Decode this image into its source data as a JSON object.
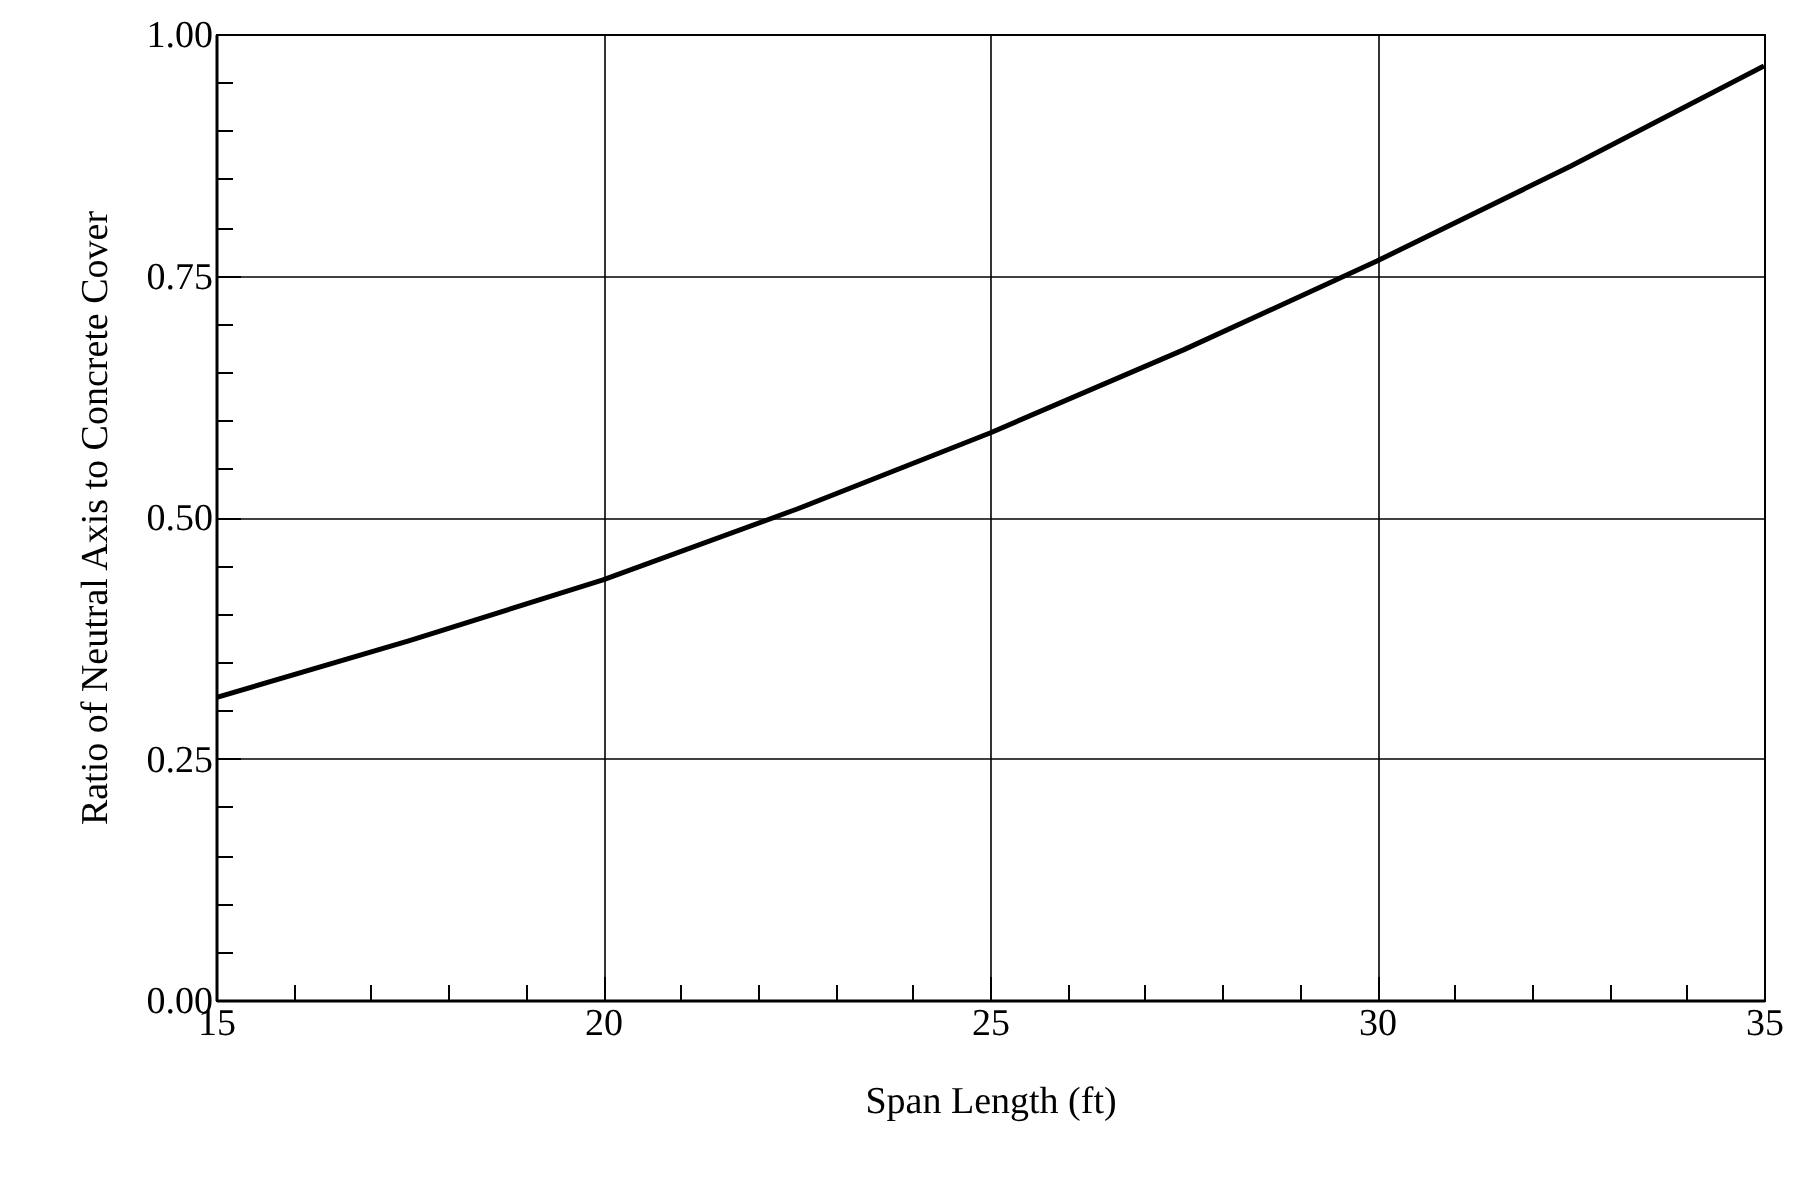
{
  "chart_data": {
    "type": "line",
    "xlabel": "Span Length (ft)",
    "ylabel": "Ratio of Neutral Axis to Concrete Cover",
    "x": [
      15,
      17.5,
      20,
      22.5,
      25,
      27.5,
      30,
      32.5,
      35
    ],
    "series": [
      {
        "color": "#000000",
        "values": [
          0.313,
          0.372,
          0.435,
          0.508,
          0.587,
          0.673,
          0.765,
          0.863,
          0.967
        ]
      }
    ],
    "xlim": [
      15,
      35
    ],
    "ylim": [
      0,
      1
    ],
    "xticks": [
      15,
      {
        "value": 16,
        "label": null
      },
      {
        "value": 17,
        "label": null
      },
      {
        "value": 18,
        "label": null
      },
      {
        "value": 19,
        "label": null
      },
      20,
      {
        "value": 21,
        "label": null
      },
      {
        "value": 22,
        "label": null
      },
      {
        "value": 23,
        "label": null
      },
      {
        "value": 24,
        "label": null
      },
      25,
      {
        "value": 26,
        "label": null
      },
      {
        "value": 27,
        "label": null
      },
      {
        "value": 28,
        "label": null
      },
      {
        "value": 29,
        "label": null
      },
      30,
      {
        "value": 31,
        "label": null
      },
      {
        "value": 32,
        "label": null
      },
      {
        "value": 33,
        "label": null
      },
      {
        "value": 34,
        "label": null
      },
      35
    ],
    "yticks": [
      {
        "value": 0,
        "label": "0.00"
      },
      {
        "value": 0.05,
        "label": null
      },
      {
        "value": 0.1,
        "label": null
      },
      {
        "value": 0.15,
        "label": null
      },
      {
        "value": 0.2,
        "label": null
      },
      {
        "value": 0.25,
        "label": "0.25"
      },
      {
        "value": 0.3,
        "label": null
      },
      {
        "value": 0.35,
        "label": null
      },
      {
        "value": 0.4,
        "label": null
      },
      {
        "value": 0.45,
        "label": null
      },
      {
        "value": 0.5,
        "label": "0.50"
      },
      {
        "value": 0.55,
        "label": null
      },
      {
        "value": 0.6,
        "label": null
      },
      {
        "value": 0.65,
        "label": null
      },
      {
        "value": 0.7,
        "label": null
      },
      {
        "value": 0.75,
        "label": "0.75"
      },
      {
        "value": 0.8,
        "label": null
      },
      {
        "value": 0.85,
        "label": null
      },
      {
        "value": 0.9,
        "label": null
      },
      {
        "value": 0.95,
        "label": null
      },
      {
        "value": 1,
        "label": "1.00"
      }
    ],
    "grid": true,
    "line_style": "solid"
  }
}
